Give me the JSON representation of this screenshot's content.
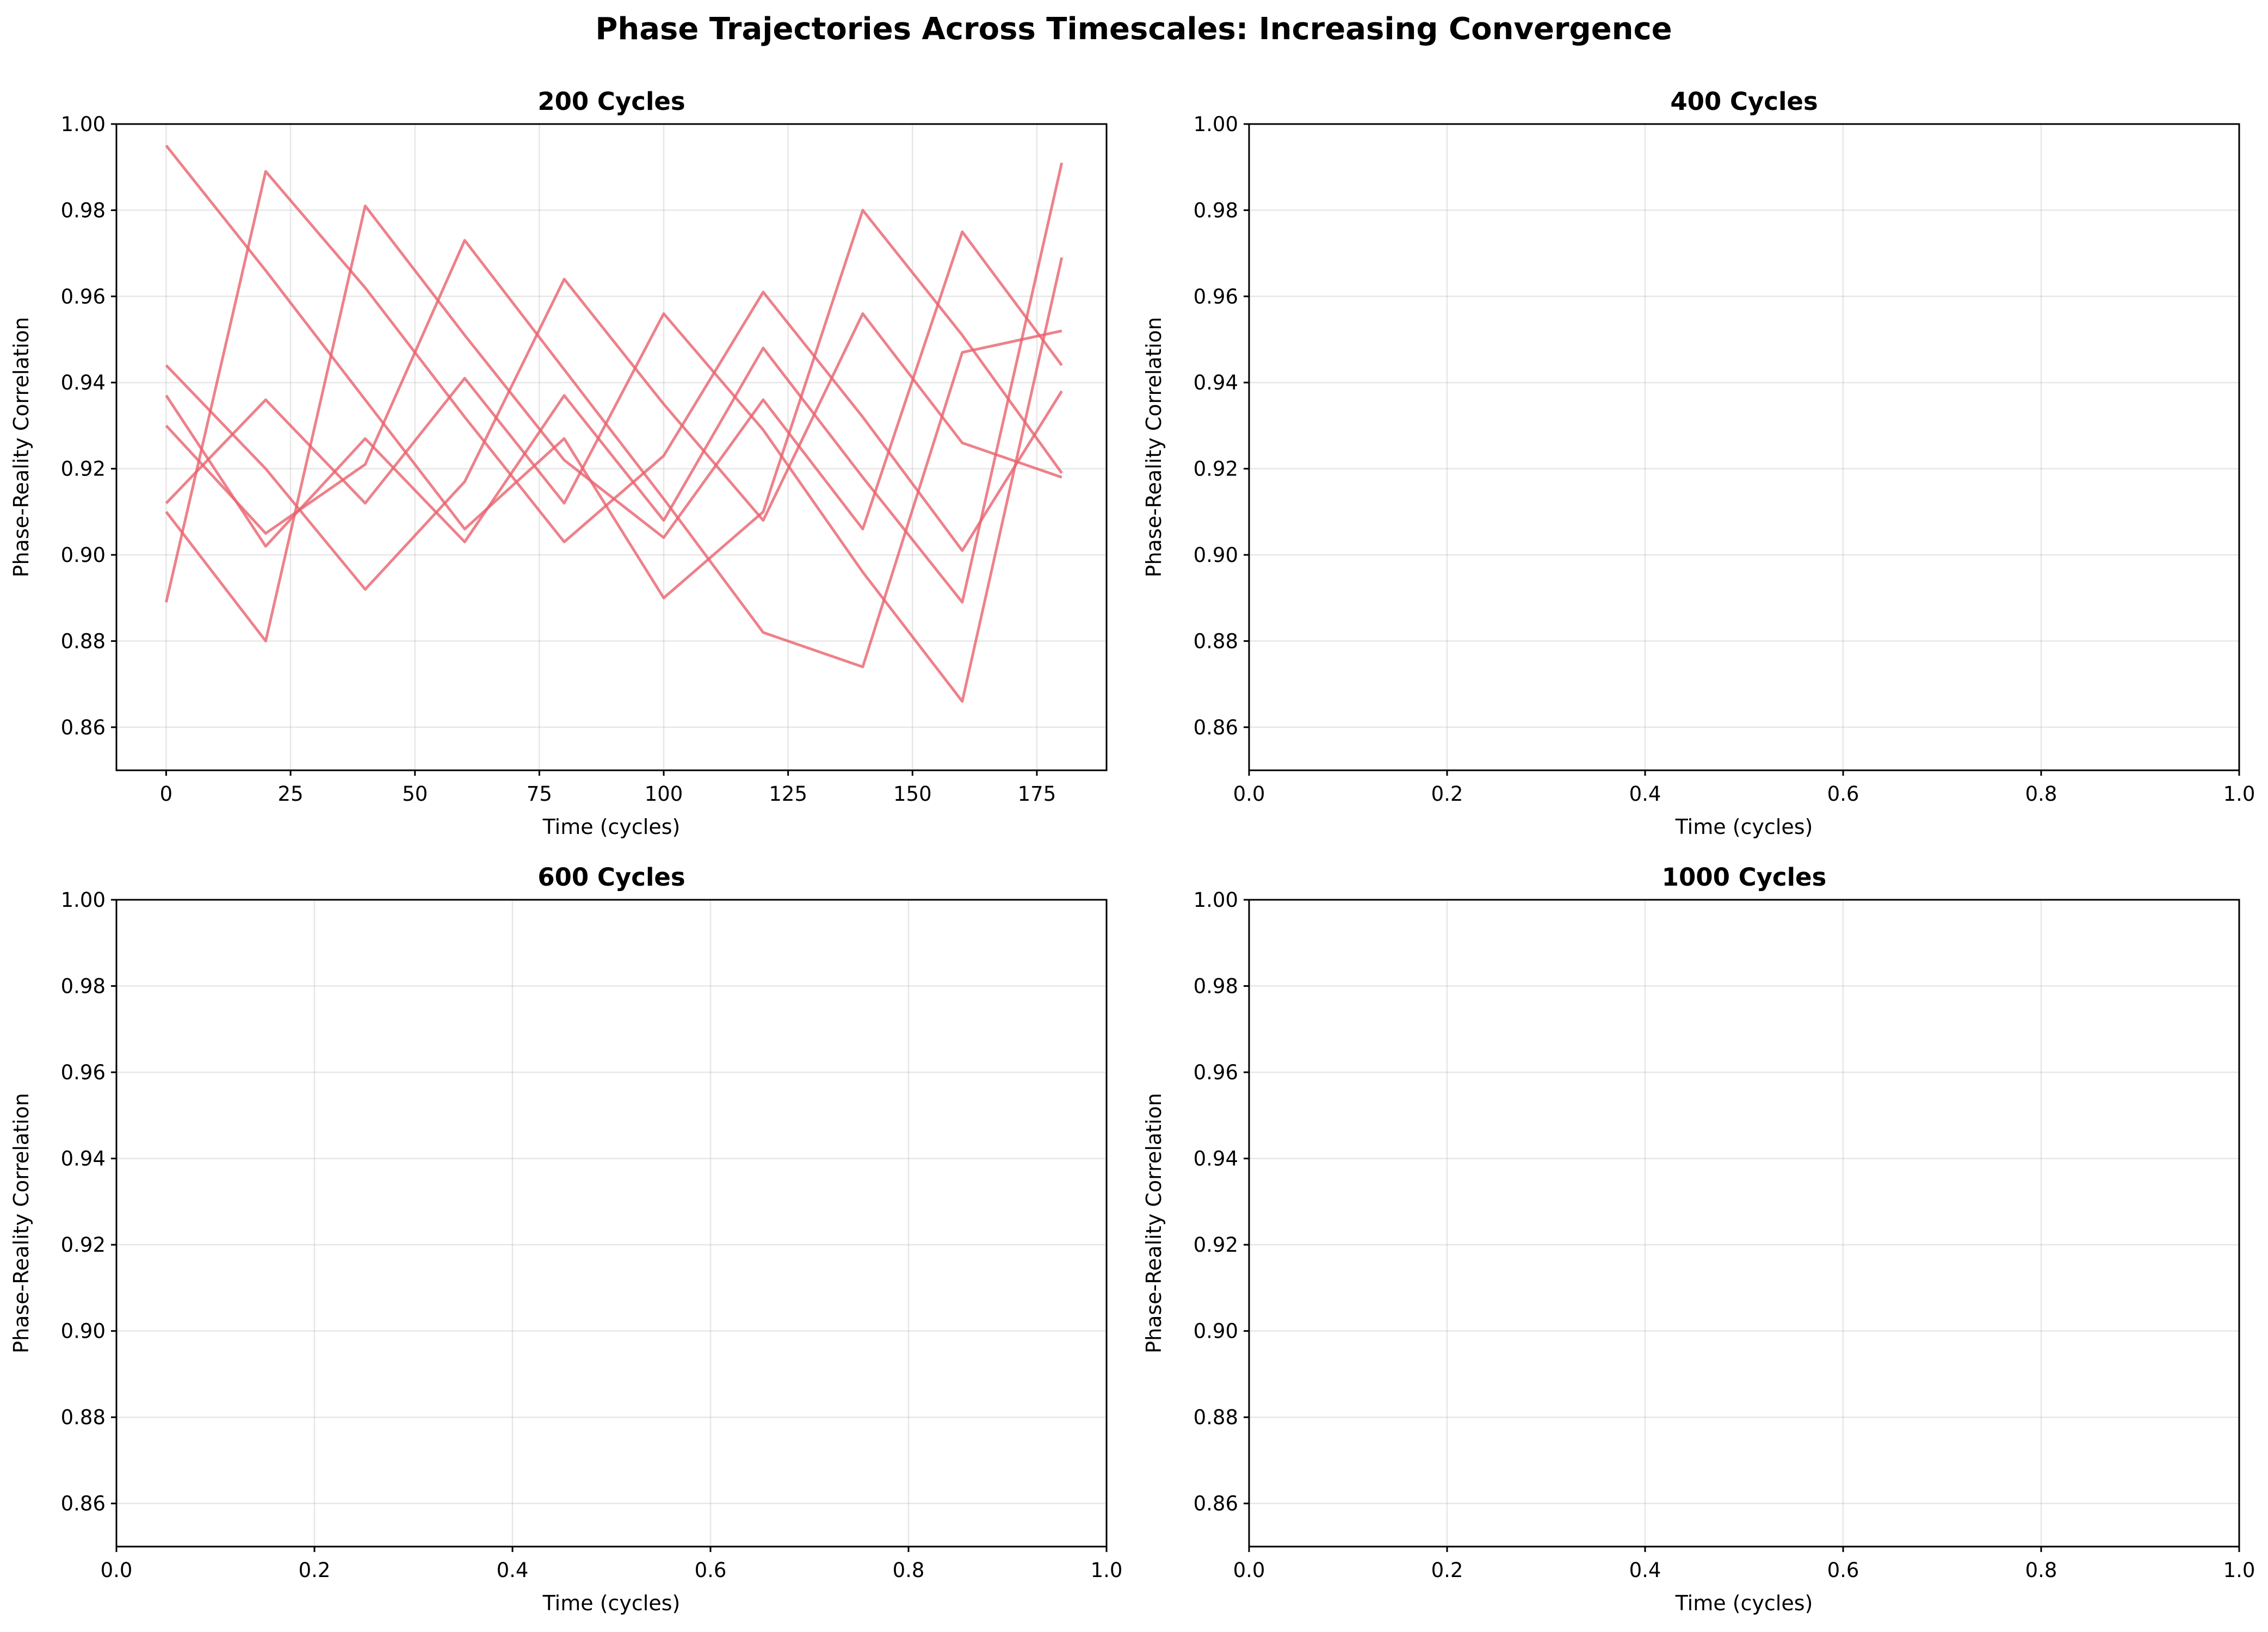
{
  "chart_data": {
    "title": "Phase Trajectories Across Timescales: Increasing Convergence",
    "type": "line",
    "panels": [
      {
        "title": "200 Cycles",
        "xlabel": "Time (cycles)",
        "ylabel": "Phase-Reality Correlation",
        "xlim": [
          -10,
          189
        ],
        "ylim": [
          0.85,
          1.0
        ],
        "xticks": [
          0,
          25,
          50,
          75,
          100,
          125,
          150,
          175
        ],
        "yticks": [
          0.86,
          0.88,
          0.9,
          0.92,
          0.94,
          0.96,
          0.98,
          1.0
        ],
        "x": [
          0,
          20,
          40,
          60,
          80,
          100,
          120,
          140,
          160,
          180
        ],
        "series": [
          {
            "values": [
              0.995,
              0.966,
              0.936,
              0.906,
              0.927,
              0.89,
              0.91,
              0.98,
              0.951,
              0.919
            ]
          },
          {
            "values": [
              0.889,
              0.989,
              0.962,
              0.932,
              0.903,
              0.923,
              0.961,
              0.932,
              0.901,
              0.938
            ]
          },
          {
            "values": [
              0.944,
              0.92,
              0.892,
              0.917,
              0.964,
              0.935,
              0.908,
              0.956,
              0.926,
              0.918
            ]
          },
          {
            "values": [
              0.91,
              0.88,
              0.981,
              0.951,
              0.922,
              0.904,
              0.936,
              0.906,
              0.975,
              0.944
            ]
          },
          {
            "values": [
              0.912,
              0.936,
              0.912,
              0.941,
              0.912,
              0.956,
              0.929,
              0.896,
              0.866,
              0.969
            ]
          },
          {
            "values": [
              0.937,
              0.902,
              0.927,
              0.903,
              0.937,
              0.908,
              0.948,
              0.918,
              0.889,
              0.991
            ]
          },
          {
            "values": [
              0.93,
              0.905,
              0.921,
              0.973,
              0.943,
              0.913,
              0.882,
              0.874,
              0.947,
              0.952
            ]
          }
        ]
      },
      {
        "title": "400 Cycles",
        "xlabel": "Time (cycles)",
        "ylabel": "Phase-Reality Correlation",
        "xlim": [
          0,
          1
        ],
        "ylim": [
          0.85,
          1.0
        ],
        "xticks": [
          0.0,
          0.2,
          0.4,
          0.6,
          0.8,
          1.0
        ],
        "yticks": [
          0.86,
          0.88,
          0.9,
          0.92,
          0.94,
          0.96,
          0.98,
          1.0
        ],
        "x": [],
        "series": []
      },
      {
        "title": "600 Cycles",
        "xlabel": "Time (cycles)",
        "ylabel": "Phase-Reality Correlation",
        "xlim": [
          0,
          1
        ],
        "ylim": [
          0.85,
          1.0
        ],
        "xticks": [
          0.0,
          0.2,
          0.4,
          0.6,
          0.8,
          1.0
        ],
        "yticks": [
          0.86,
          0.88,
          0.9,
          0.92,
          0.94,
          0.96,
          0.98,
          1.0
        ],
        "x": [],
        "series": []
      },
      {
        "title": "1000 Cycles",
        "xlabel": "Time (cycles)",
        "ylabel": "Phase-Reality Correlation",
        "xlim": [
          0,
          1
        ],
        "ylim": [
          0.85,
          1.0
        ],
        "xticks": [
          0.0,
          0.2,
          0.4,
          0.6,
          0.8,
          1.0
        ],
        "yticks": [
          0.86,
          0.88,
          0.9,
          0.92,
          0.94,
          0.96,
          0.98,
          1.0
        ],
        "x": [],
        "series": []
      }
    ],
    "grid": true,
    "line_color": "#e8616d"
  }
}
